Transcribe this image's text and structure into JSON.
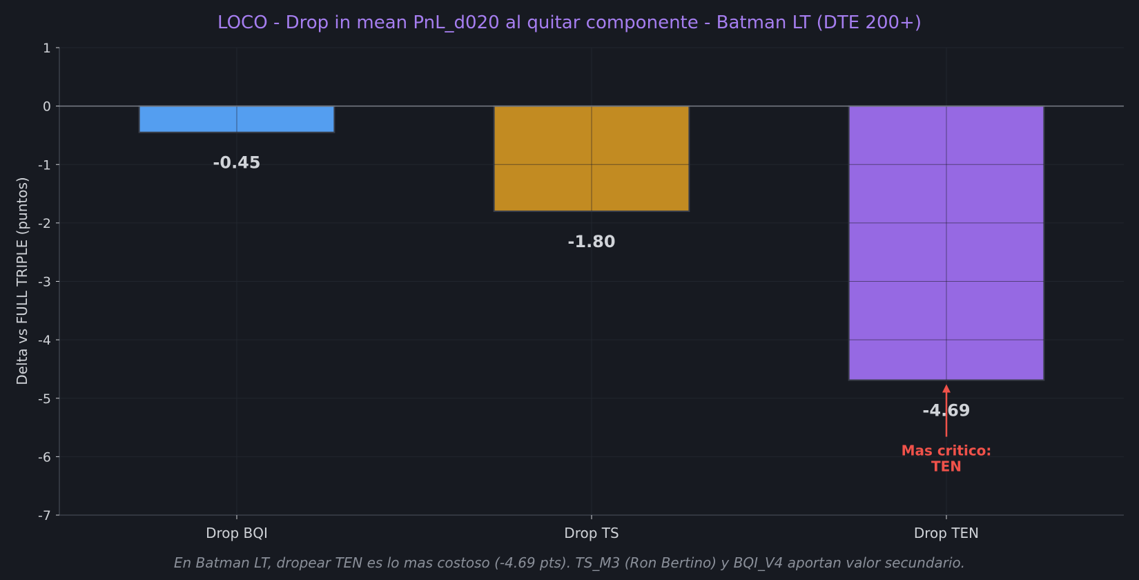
{
  "colors": {
    "background": "#171a21",
    "title": "#a67ef0",
    "text": "#d0d3d8",
    "caption": "#8a8f99",
    "annotation": "#f0524a",
    "axis": "#3c414b",
    "zero_line": "#7a7f88",
    "grid": "#22262e"
  },
  "chart_data": {
    "type": "bar",
    "title": "LOCO  -  Drop in mean PnL_d020 al quitar componente  -  Batman LT (DTE 200+)",
    "xlabel": "",
    "ylabel": "Delta vs FULL TRIPLE (puntos)",
    "categories": [
      "Drop BQI",
      "Drop TS",
      "Drop TEN"
    ],
    "values": [
      -0.45,
      -1.8,
      -4.69
    ],
    "value_labels": [
      "-0.45",
      "-1.80",
      "-4.69"
    ],
    "bar_colors": [
      "#549ef0",
      "#c28b22",
      "#9669e3"
    ],
    "ylim": [
      -7,
      1
    ],
    "yticks": [
      1,
      0,
      -1,
      -2,
      -3,
      -4,
      -5,
      -6,
      -7
    ],
    "grid": true,
    "annotation": {
      "category": "Drop TEN",
      "lines": [
        "Mas critico:",
        "TEN"
      ],
      "arrow_points_to": -4.69
    },
    "caption": "En Batman LT, dropear TEN es lo mas costoso (-4.69 pts). TS_M3 (Ron Bertino) y BQI_V4 aportan valor secundario."
  }
}
